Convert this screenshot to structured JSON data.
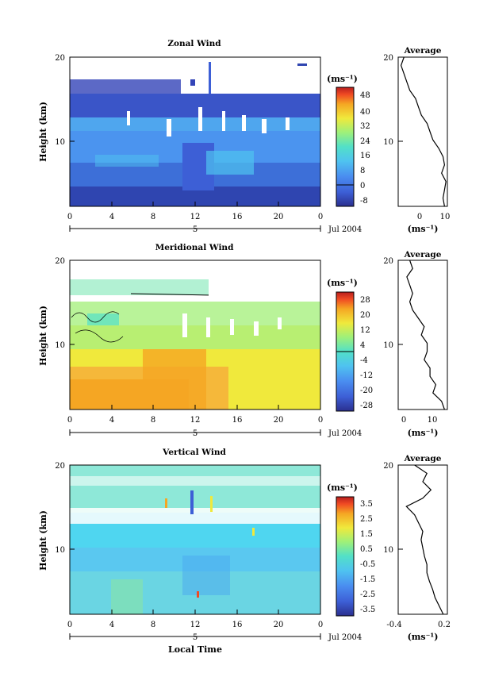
{
  "figure": {
    "panels": [
      {
        "id": "zonal",
        "title": "Zonal Wind",
        "ylabel": "Height (km)",
        "y_ticks": [
          "20",
          "10"
        ],
        "x_ticks": [
          "0",
          "4",
          "8",
          "12",
          "16",
          "20",
          "0"
        ],
        "day_label": "5",
        "month_label": "Jul 2004",
        "colorbar": {
          "unit": "(ms⁻¹)",
          "ticks": [
            "48",
            "40",
            "32",
            "24",
            "16",
            "8",
            "0",
            "-8"
          ]
        },
        "profile": {
          "title": "Average",
          "y_ticks": [
            "20",
            "10"
          ],
          "x_ticks": [
            "0",
            "10"
          ],
          "xlabel": "(ms⁻¹)"
        }
      },
      {
        "id": "meridional",
        "title": "Meridional Wind",
        "ylabel": "Height (km)",
        "y_ticks": [
          "20",
          "10"
        ],
        "x_ticks": [
          "0",
          "4",
          "8",
          "12",
          "16",
          "20",
          "0"
        ],
        "day_label": "5",
        "month_label": "Jul 2004",
        "colorbar": {
          "unit": "(ms⁻¹)",
          "ticks": [
            "28",
            "20",
            "12",
            "4",
            "-4",
            "-12",
            "-20",
            "-28"
          ]
        },
        "profile": {
          "title": "Average",
          "y_ticks": [
            "20",
            "10"
          ],
          "x_ticks": [
            "0",
            "10"
          ],
          "xlabel": "(ms⁻¹)"
        }
      },
      {
        "id": "vertical",
        "title": "Vertical Wind",
        "ylabel": "Height (km)",
        "y_ticks": [
          "20",
          "10"
        ],
        "x_ticks": [
          "0",
          "4",
          "8",
          "12",
          "16",
          "20",
          "0"
        ],
        "day_label": "5",
        "month_label": "Jul 2004",
        "xlabel": "Local Time",
        "colorbar": {
          "unit": "(ms⁻¹)",
          "ticks": [
            "3.5",
            "2.5",
            "1.5",
            "0.5",
            "-0.5",
            "-1.5",
            "-2.5",
            "-3.5"
          ]
        },
        "profile": {
          "title": "Average",
          "y_ticks": [
            "20",
            "10"
          ],
          "x_ticks": [
            "-0.4",
            "0.2"
          ],
          "xlabel": "(ms⁻¹)"
        }
      }
    ]
  },
  "chart_data": [
    {
      "type": "heatmap",
      "title": "Zonal Wind",
      "xlabel": "",
      "ylabel": "Height (km)",
      "xlim": [
        0,
        24
      ],
      "ylim": [
        2,
        20
      ],
      "colorbar_range": [
        -8,
        48
      ],
      "colors": [
        "#2b2f8f",
        "#3d5fd6",
        "#4a8df0",
        "#4fc3f0",
        "#52e0c8",
        "#9ef07a",
        "#f0e93c",
        "#f5a623",
        "#f04a23",
        "#b81d1d"
      ],
      "average_profile": {
        "title": "Average",
        "xlim": [
          -7,
          10
        ],
        "height_km": [
          2,
          3,
          4,
          5,
          6,
          7,
          8,
          9,
          10,
          11,
          12,
          13,
          14,
          15,
          16,
          17,
          18,
          19,
          20
        ],
        "wind_ms": [
          9,
          8.5,
          9,
          9.5,
          8,
          9,
          8.5,
          7,
          5,
          4,
          3,
          1,
          0,
          -1,
          -3,
          -4,
          -5,
          -6,
          -5
        ]
      }
    },
    {
      "type": "heatmap",
      "title": "Meridional Wind",
      "xlabel": "",
      "ylabel": "Height (km)",
      "xlim": [
        0,
        24
      ],
      "ylim": [
        2,
        20
      ],
      "colorbar_range": [
        -28,
        28
      ],
      "colors": [
        "#2b2f8f",
        "#3d5fd6",
        "#4a8df0",
        "#4fc3f0",
        "#52e0c8",
        "#9ef07a",
        "#f0e93c",
        "#f5a623",
        "#f04a23",
        "#b81d1d"
      ],
      "average_profile": {
        "title": "Average",
        "xlim": [
          -3,
          14
        ],
        "height_km": [
          2,
          3,
          4,
          5,
          6,
          7,
          8,
          9,
          10,
          11,
          12,
          13,
          14,
          15,
          16,
          17,
          18,
          19,
          20
        ],
        "wind_ms": [
          13,
          12,
          9,
          10,
          8,
          8,
          6,
          7,
          7,
          5,
          6,
          4,
          2,
          1,
          2,
          1,
          0,
          2,
          1
        ]
      }
    },
    {
      "type": "heatmap",
      "title": "Vertical Wind",
      "xlabel": "Local Time",
      "ylabel": "Height (km)",
      "xlim": [
        0,
        24
      ],
      "ylim": [
        2,
        20
      ],
      "colorbar_range": [
        -3.5,
        3.5
      ],
      "colors": [
        "#2b2f8f",
        "#3d5fd6",
        "#4a8df0",
        "#4fc3f0",
        "#52e0c8",
        "#9ef07a",
        "#f0e93c",
        "#f5a623",
        "#f04a23",
        "#b81d1d"
      ],
      "average_profile": {
        "title": "Average",
        "xlim": [
          -0.4,
          0.2
        ],
        "height_km": [
          2,
          3,
          4,
          5,
          6,
          7,
          8,
          9,
          10,
          11,
          12,
          13,
          14,
          15,
          16,
          17,
          18,
          19,
          20
        ],
        "wind_ms": [
          0.15,
          0.1,
          0.05,
          0.02,
          -0.02,
          -0.05,
          -0.05,
          -0.08,
          -0.1,
          -0.12,
          -0.1,
          -0.15,
          -0.2,
          -0.3,
          -0.1,
          0.0,
          -0.1,
          -0.05,
          -0.2
        ]
      }
    }
  ]
}
